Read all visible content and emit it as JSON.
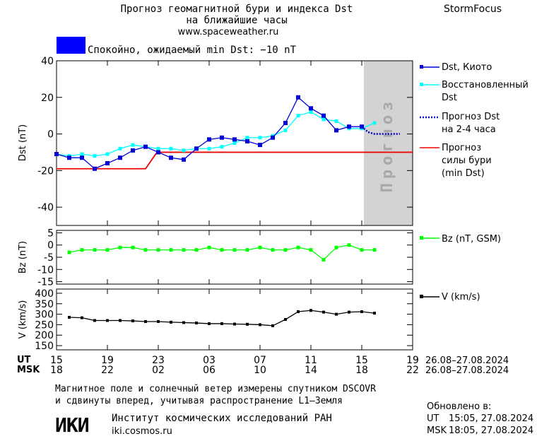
{
  "header": {
    "title_line1": "Прогноз геомагнитной бури и индекса Dst",
    "title_line2": "на ближайшие часы",
    "url": "www.spaceweather.ru",
    "brand": "StormFocus",
    "status_text": "Спокойно, ожидаемый min Dst: −10 nT"
  },
  "colors": {
    "status": "#0000ff",
    "dst_kyoto": "#0000dd",
    "dst_restored": "#00ffff",
    "forecast_dst": "#0000cc",
    "storm_forecast": "#ee0000",
    "bz": "#00ff00",
    "v": "#000000",
    "forecast_zone": "#d3d3d3"
  },
  "legend": {
    "dst_kyoto": "Dst, Киото",
    "dst_restored_1": "Восстановленный",
    "dst_restored_2": "Dst",
    "forecast_1": "Прогноз Dst",
    "forecast_2": "на 2-4 часа",
    "storm_1": "Прогноз",
    "storm_2": "силы бури",
    "storm_3": "(min Dst)",
    "bz": "Bz (nT, GSM)",
    "v": "V (km/s)"
  },
  "forecast_zone_label": "Прогноз",
  "x_axis": {
    "ut_label": "UT",
    "msk_label": "MSK",
    "ut_ticks": [
      "15",
      "19",
      "23",
      "03",
      "07",
      "11",
      "15",
      "19"
    ],
    "msk_ticks": [
      "18",
      "22",
      "02",
      "06",
      "10",
      "14",
      "18",
      "22"
    ],
    "ut_range": "26.08–27.08.2024",
    "msk_range": "26.08–27.08.2024"
  },
  "footer": {
    "note_line1": "Магнитное поле и солнечный ветер измерены спутником DSCOVR",
    "note_line2": "и сдвинуты вперед, учитывая распространение L1–Земля",
    "logo_text": "ИКИ",
    "institute": "Институт космических исследований РАН",
    "institute_url": "iki.cosmos.ru",
    "updated_label": "Обновлено в:",
    "updated_ut_label": "UT",
    "updated_ut": "15:05, 27.08.2024",
    "updated_msk_label": "MSK",
    "updated_msk": "18:05, 27.08.2024"
  },
  "chart_data": [
    {
      "type": "line",
      "ylabel": "Dst (nT)",
      "ylim": [
        -50,
        40
      ],
      "yticks": [
        40,
        20,
        0,
        -20,
        -40
      ],
      "xlim": [
        0,
        28
      ],
      "forecast_zone": [
        24,
        28
      ],
      "series": [
        {
          "name": "Dst, Киото",
          "x": [
            0,
            1,
            2,
            3,
            4,
            5,
            6,
            7,
            8,
            9,
            10,
            11,
            12,
            13,
            14,
            15,
            16,
            17,
            18,
            19,
            20,
            21,
            22,
            23,
            24
          ],
          "values": [
            -11,
            -13,
            -13,
            -19,
            -16,
            -13,
            -9,
            -7,
            -10,
            -13,
            -14,
            -8,
            -3,
            -2,
            -3,
            -4,
            -6,
            -2,
            6,
            20,
            14,
            10,
            2,
            4,
            4
          ]
        },
        {
          "name": "Восстановленный Dst",
          "x": [
            0,
            1,
            2,
            3,
            4,
            5,
            6,
            7,
            8,
            9,
            10,
            11,
            12,
            13,
            14,
            15,
            16,
            17,
            18,
            19,
            20,
            21,
            22,
            23,
            24,
            25
          ],
          "values": [
            -11,
            -12,
            -11,
            -12,
            -11,
            -8,
            -6,
            -7,
            -8,
            -8,
            -9,
            -8,
            -8,
            -7,
            -5,
            -2,
            -2,
            -1,
            2,
            10,
            12,
            8,
            7,
            3,
            3,
            6
          ]
        },
        {
          "name": "Прогноз Dst на 2-4 часа",
          "x": [
            24,
            24.5,
            25,
            25.5,
            26,
            26.5,
            27
          ],
          "values": [
            4,
            1,
            0,
            0,
            0,
            0,
            0
          ]
        },
        {
          "name": "Прогноз силы бури (min Dst)",
          "x": [
            0,
            7,
            7.9,
            28
          ],
          "values": [
            -19,
            -19,
            -10,
            -10
          ]
        }
      ]
    },
    {
      "type": "line",
      "ylabel": "Bz (nT)",
      "ylim": [
        -16,
        6
      ],
      "yticks": [
        5,
        0,
        -5,
        -10,
        -15
      ],
      "series": [
        {
          "name": "Bz (nT, GSM)",
          "x": [
            1,
            2,
            3,
            4,
            5,
            6,
            7,
            8,
            9,
            10,
            11,
            12,
            13,
            14,
            15,
            16,
            17,
            18,
            19,
            20,
            21,
            22,
            23,
            24,
            25
          ],
          "values": [
            -3,
            -2,
            -2,
            -2,
            -1,
            -1,
            -2,
            -2,
            -2,
            -2,
            -2,
            -1,
            -2,
            -2,
            -2,
            -1,
            -2,
            -2,
            -1,
            -2,
            -6,
            -1,
            0,
            -2,
            -2
          ]
        }
      ]
    },
    {
      "type": "line",
      "ylabel": "V (km/s)",
      "ylim": [
        130,
        420
      ],
      "yticks": [
        400,
        350,
        300,
        250,
        200,
        150
      ],
      "series": [
        {
          "name": "V (km/s)",
          "x": [
            1,
            2,
            3,
            4,
            5,
            6,
            7,
            8,
            9,
            10,
            11,
            12,
            13,
            14,
            15,
            16,
            17,
            18,
            19,
            20,
            21,
            22,
            23,
            24,
            25
          ],
          "values": [
            285,
            283,
            270,
            270,
            270,
            268,
            265,
            265,
            262,
            260,
            258,
            255,
            255,
            253,
            252,
            250,
            245,
            275,
            312,
            318,
            310,
            300,
            310,
            312,
            305
          ]
        }
      ]
    }
  ]
}
